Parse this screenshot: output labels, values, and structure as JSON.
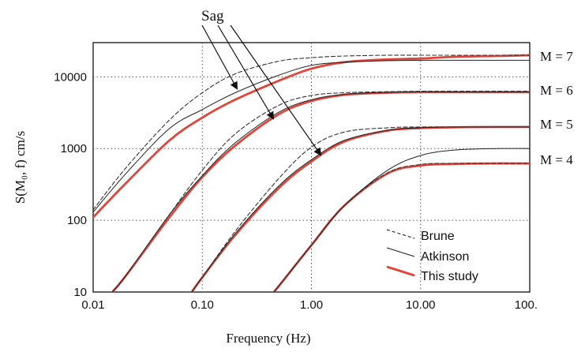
{
  "chart_data": {
    "type": "line",
    "xlabel": "Frequency (Hz)",
    "ylabel": "S(M₀, f) cm/s",
    "xscale": "log",
    "yscale": "log",
    "xlim": [
      0.01,
      100
    ],
    "ylim": [
      10,
      30000
    ],
    "xticks": [
      0.01,
      0.1,
      1,
      10,
      100
    ],
    "xtick_labels": [
      "0.01",
      "0.10",
      "1.00",
      "10.00",
      "100."
    ],
    "yticks": [
      10,
      100,
      1000,
      10000
    ],
    "ytick_labels": [
      "10",
      "100",
      "1000",
      "10000"
    ],
    "grid": true,
    "legend_position": "bottom-right",
    "legend": [
      {
        "label": "Brune",
        "style": "dashed",
        "color": "#333333"
      },
      {
        "label": "Atkinson",
        "style": "solid",
        "color": "#222222"
      },
      {
        "label": "This study",
        "style": "solid-thick",
        "color": "#e0453c"
      }
    ],
    "magnitude_labels": [
      "M = 7",
      "M = 6",
      "M = 5",
      "M = 4"
    ],
    "annotation": "Sag",
    "series": [
      {
        "magnitude": "M = 7",
        "style": "dashed",
        "x": [
          0.01,
          0.02,
          0.05,
          0.1,
          0.2,
          0.5,
          1,
          2,
          5,
          10,
          20,
          50,
          100
        ],
        "y": [
          140,
          540,
          2500,
          6000,
          11000,
          16500,
          18500,
          19500,
          20000,
          20000,
          20000,
          20000,
          20000
        ]
      },
      {
        "magnitude": "M = 7",
        "style": "solid",
        "x": [
          0.01,
          0.02,
          0.05,
          0.1,
          0.2,
          0.5,
          1,
          2,
          5,
          10,
          20,
          50,
          100
        ],
        "y": [
          130,
          450,
          1900,
          3500,
          6000,
          10500,
          14500,
          16000,
          16800,
          17000,
          17000,
          17000,
          17000
        ]
      },
      {
        "magnitude": "M = 7",
        "style": "red",
        "x": [
          0.01,
          0.02,
          0.05,
          0.1,
          0.2,
          0.5,
          1,
          2,
          5,
          10,
          20,
          50,
          100
        ],
        "y": [
          110,
          330,
          1300,
          2700,
          4800,
          8800,
          13000,
          16000,
          17500,
          18000,
          19000,
          19500,
          20000
        ]
      },
      {
        "magnitude": "M = 6",
        "style": "dashed",
        "x": [
          0.015,
          0.02,
          0.05,
          0.1,
          0.2,
          0.5,
          1,
          2,
          5,
          10,
          20,
          50,
          100
        ],
        "y": [
          10,
          17,
          120,
          500,
          1600,
          4000,
          5500,
          6000,
          6200,
          6300,
          6300,
          6300,
          6300
        ]
      },
      {
        "magnitude": "M = 6",
        "style": "solid",
        "x": [
          0.015,
          0.02,
          0.05,
          0.1,
          0.2,
          0.5,
          1,
          2,
          5,
          10,
          20,
          50,
          100
        ],
        "y": [
          10,
          17,
          120,
          420,
          1200,
          3200,
          4800,
          5700,
          6100,
          6200,
          6200,
          6200,
          6200
        ]
      },
      {
        "magnitude": "M = 6",
        "style": "red",
        "x": [
          0.015,
          0.02,
          0.05,
          0.1,
          0.2,
          0.5,
          1,
          2,
          5,
          10,
          20,
          50,
          100
        ],
        "y": [
          10,
          17,
          110,
          400,
          1100,
          3000,
          4600,
          5600,
          6000,
          6100,
          6100,
          6100,
          6100
        ]
      },
      {
        "magnitude": "M = 5",
        "style": "dashed",
        "x": [
          0.08,
          0.1,
          0.2,
          0.5,
          1,
          2,
          5,
          10,
          20,
          50,
          100
        ],
        "y": [
          10,
          16,
          70,
          380,
          1050,
          1700,
          1950,
          2000,
          2000,
          2000,
          2000
        ]
      },
      {
        "magnitude": "M = 5",
        "style": "solid",
        "x": [
          0.08,
          0.1,
          0.2,
          0.5,
          1,
          2,
          5,
          10,
          20,
          50,
          100
        ],
        "y": [
          10,
          16,
          65,
          300,
          700,
          1300,
          1800,
          1950,
          2000,
          2000,
          2000
        ]
      },
      {
        "magnitude": "M = 5",
        "style": "red",
        "x": [
          0.08,
          0.1,
          0.2,
          0.5,
          1,
          2,
          5,
          10,
          20,
          50,
          100
        ],
        "y": [
          10,
          16,
          62,
          280,
          660,
          1250,
          1780,
          1930,
          1980,
          2000,
          2000
        ]
      },
      {
        "magnitude": "M = 4",
        "style": "dashed",
        "x": [
          0.45,
          0.5,
          1,
          2,
          5,
          10,
          20,
          50,
          100
        ],
        "y": [
          10,
          12,
          45,
          160,
          460,
          600,
          620,
          620,
          620
        ]
      },
      {
        "magnitude": "M = 4",
        "style": "solid",
        "x": [
          0.45,
          0.5,
          1,
          2,
          5,
          10,
          20,
          50,
          100
        ],
        "y": [
          10,
          12,
          45,
          160,
          500,
          800,
          950,
          1000,
          1000
        ]
      },
      {
        "magnitude": "M = 4",
        "style": "red",
        "x": [
          0.45,
          0.5,
          1,
          2,
          5,
          10,
          20,
          50,
          100
        ],
        "y": [
          10,
          12,
          45,
          160,
          450,
          580,
          610,
          620,
          620
        ]
      }
    ]
  }
}
